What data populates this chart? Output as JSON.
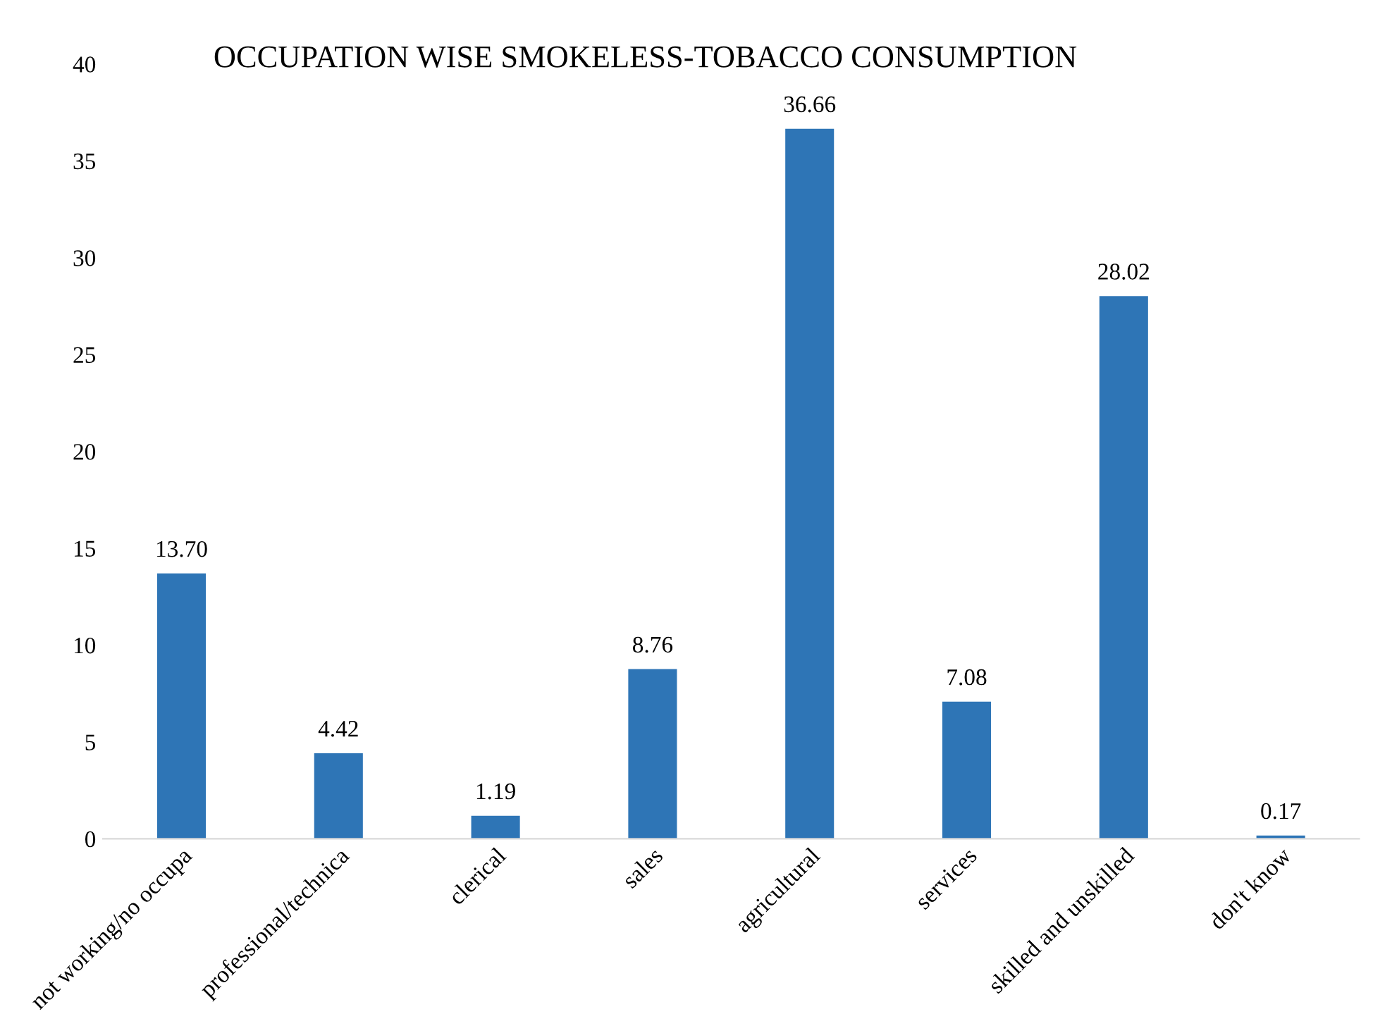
{
  "chart_data": {
    "type": "bar",
    "title": "OCCUPATION WISE SMOKELESS-TOBACCO CONSUMPTION",
    "categories": [
      "not working/no occupa",
      "professional/technica",
      "clerical",
      "sales",
      "agricultural",
      "services",
      "skilled and unskilled",
      "don't know"
    ],
    "values": [
      13.7,
      4.42,
      1.19,
      8.76,
      36.66,
      7.08,
      28.02,
      0.17
    ],
    "value_labels": [
      "13.70",
      "4.42",
      "1.19",
      "8.76",
      "36.66",
      "7.08",
      "28.02",
      "0.17"
    ],
    "color": "#2e75b6",
    "ylim": [
      0,
      40
    ],
    "yticks": [
      0,
      5,
      10,
      15,
      20,
      25,
      30,
      35,
      40
    ],
    "grid": false,
    "legend": false
  }
}
